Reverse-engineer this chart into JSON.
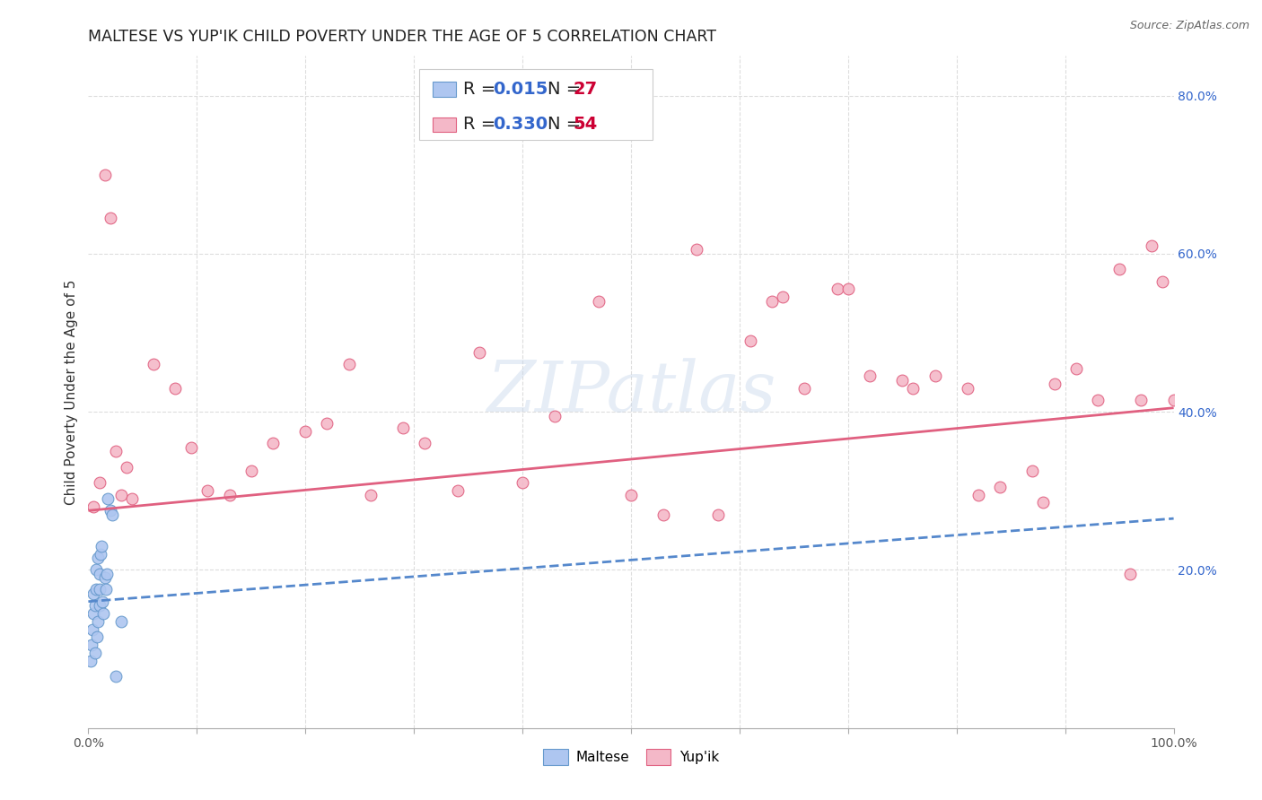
{
  "title": "MALTESE VS YUP'IK CHILD POVERTY UNDER THE AGE OF 5 CORRELATION CHART",
  "source": "Source: ZipAtlas.com",
  "ylabel": "Child Poverty Under the Age of 5",
  "xlim": [
    0.0,
    1.0
  ],
  "ylim": [
    0.0,
    0.85
  ],
  "ytick_positions": [
    0.2,
    0.4,
    0.6,
    0.8
  ],
  "yticklabels": [
    "20.0%",
    "40.0%",
    "60.0%",
    "80.0%"
  ],
  "background_color": "#ffffff",
  "grid_color": "#dddddd",
  "watermark": "ZIPatlas",
  "maltese_x": [
    0.002,
    0.003,
    0.004,
    0.005,
    0.005,
    0.006,
    0.006,
    0.007,
    0.007,
    0.008,
    0.009,
    0.009,
    0.01,
    0.01,
    0.01,
    0.011,
    0.012,
    0.013,
    0.014,
    0.015,
    0.016,
    0.017,
    0.018,
    0.02,
    0.022,
    0.025,
    0.03
  ],
  "maltese_y": [
    0.085,
    0.105,
    0.125,
    0.145,
    0.17,
    0.095,
    0.155,
    0.175,
    0.2,
    0.115,
    0.135,
    0.215,
    0.155,
    0.175,
    0.195,
    0.22,
    0.23,
    0.16,
    0.145,
    0.19,
    0.175,
    0.195,
    0.29,
    0.275,
    0.27,
    0.065,
    0.135
  ],
  "maltese_color": "#aec6f0",
  "maltese_edge_color": "#6699cc",
  "maltese_R": 0.015,
  "maltese_N": 27,
  "yupik_x": [
    0.005,
    0.01,
    0.015,
    0.02,
    0.025,
    0.03,
    0.035,
    0.04,
    0.06,
    0.08,
    0.095,
    0.11,
    0.13,
    0.15,
    0.17,
    0.2,
    0.22,
    0.24,
    0.26,
    0.29,
    0.31,
    0.34,
    0.36,
    0.4,
    0.43,
    0.47,
    0.5,
    0.53,
    0.56,
    0.58,
    0.61,
    0.64,
    0.66,
    0.69,
    0.72,
    0.75,
    0.78,
    0.81,
    0.84,
    0.87,
    0.89,
    0.91,
    0.93,
    0.95,
    0.97,
    0.98,
    0.99,
    1.0,
    0.63,
    0.7,
    0.76,
    0.82,
    0.88,
    0.96
  ],
  "yupik_y": [
    0.28,
    0.31,
    0.7,
    0.645,
    0.35,
    0.295,
    0.33,
    0.29,
    0.46,
    0.43,
    0.355,
    0.3,
    0.295,
    0.325,
    0.36,
    0.375,
    0.385,
    0.46,
    0.295,
    0.38,
    0.36,
    0.3,
    0.475,
    0.31,
    0.395,
    0.54,
    0.295,
    0.27,
    0.605,
    0.27,
    0.49,
    0.545,
    0.43,
    0.555,
    0.445,
    0.44,
    0.445,
    0.43,
    0.305,
    0.325,
    0.435,
    0.455,
    0.415,
    0.58,
    0.415,
    0.61,
    0.565,
    0.415,
    0.54,
    0.555,
    0.43,
    0.295,
    0.285,
    0.195
  ],
  "yupik_color": "#f4b8c8",
  "yupik_edge_color": "#e06080",
  "yupik_R": 0.33,
  "yupik_N": 54,
  "maltese_trend_x": [
    0.0,
    1.0
  ],
  "maltese_trend_y_start": 0.16,
  "maltese_trend_y_end": 0.265,
  "maltese_trend_color": "#5588cc",
  "yupik_trend_x": [
    0.0,
    1.0
  ],
  "yupik_trend_y_start": 0.275,
  "yupik_trend_y_end": 0.405,
  "yupik_trend_color": "#e06080",
  "legend_R_color": "#3366cc",
  "legend_N_color": "#cc0033",
  "marker_size": 85,
  "title_fontsize": 12.5,
  "axis_label_fontsize": 11,
  "tick_fontsize": 10,
  "legend_fontsize": 14
}
